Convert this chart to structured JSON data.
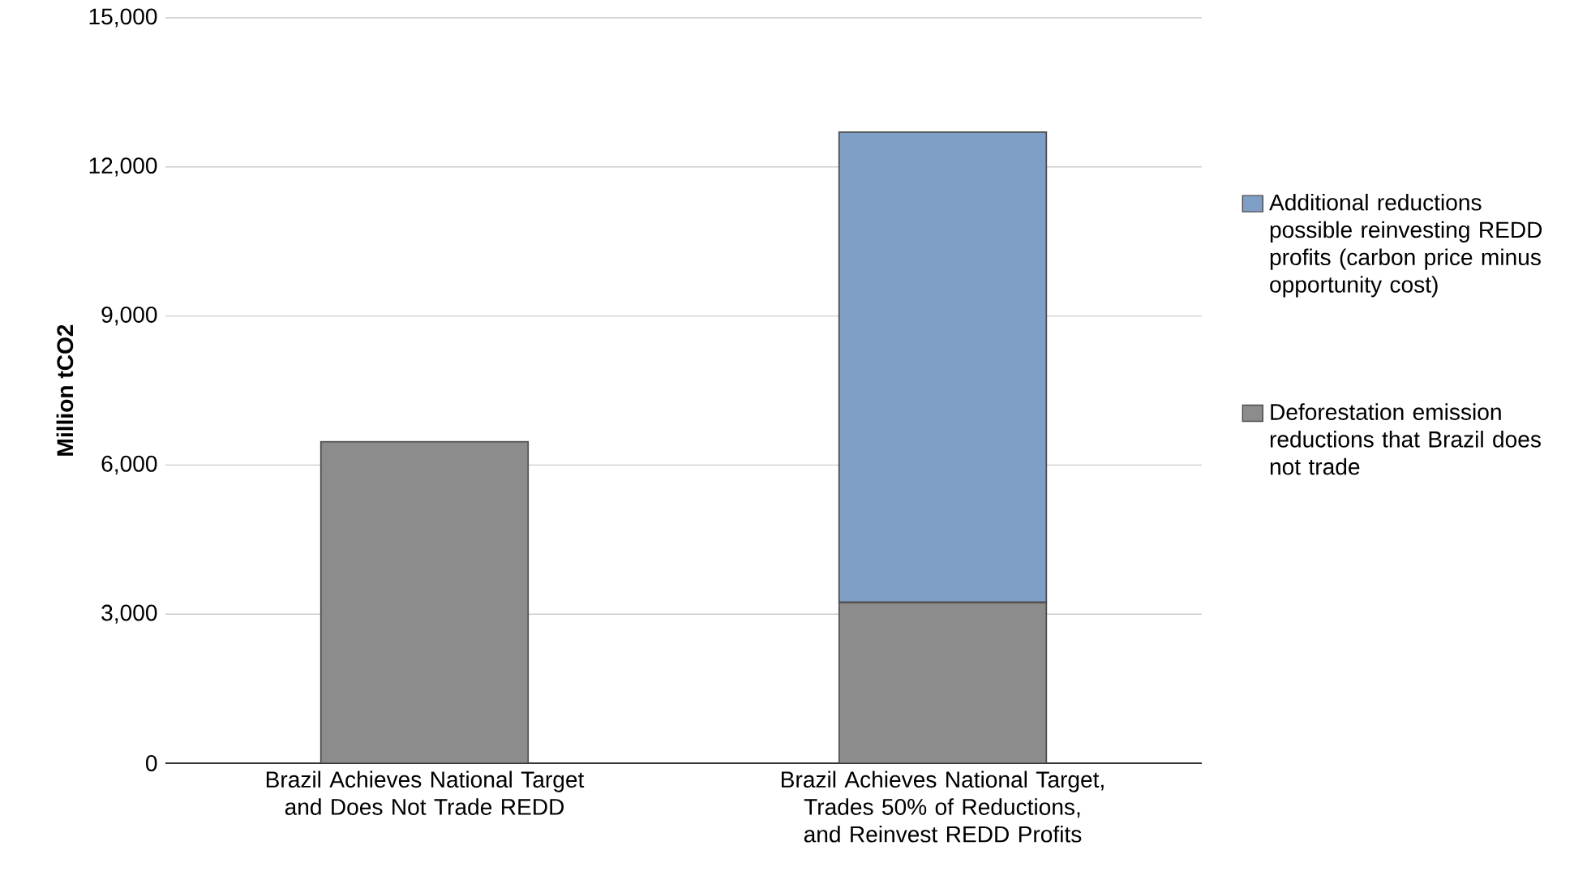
{
  "chart_data": {
    "type": "bar",
    "stacked": true,
    "ylabel": "Million tCO2",
    "categories": [
      "Brazil Achieves National Target and Does Not Trade REDD",
      "Brazil Achieves National Target, Trades 50% of Reductions, and Reinvest REDD Profits"
    ],
    "series": [
      {
        "name": "Deforestation emission reductions that Brazil does not trade",
        "color": "#8c8c8c",
        "values": [
          6470,
          3240
        ]
      },
      {
        "name": "Additional reductions possible reinvesting REDD profits (carbon price minus opportunity cost)",
        "color": "#7f9fc6",
        "values": [
          null,
          9460
        ]
      }
    ],
    "ylim": [
      0,
      15000
    ],
    "yticks": [
      0,
      {
        "value": 3000,
        "label": "3,000"
      },
      {
        "value": 6000,
        "label": "6,000"
      },
      {
        "value": 9000,
        "label": "9,000"
      },
      {
        "value": 12000,
        "label": "12,000"
      },
      {
        "value": 15000,
        "label": "15,000"
      }
    ],
    "grid": "y",
    "legend": "right"
  }
}
